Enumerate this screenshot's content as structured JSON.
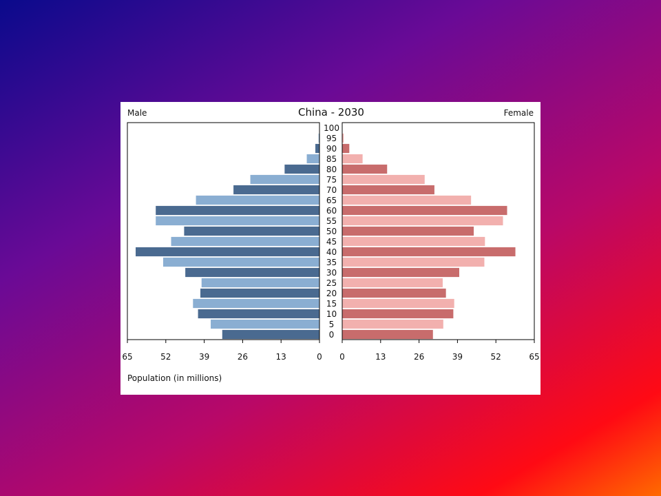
{
  "chart_data": {
    "type": "bar",
    "subtype": "population-pyramid",
    "title": "China - 2030",
    "left_label": "Male",
    "right_label": "Female",
    "xlabel": "Population (in millions)",
    "xlim": [
      0,
      65
    ],
    "xticks": [
      "65",
      "52",
      "39",
      "26",
      "13",
      "0"
    ],
    "xticks_right": [
      "0",
      "13",
      "26",
      "39",
      "52",
      "65"
    ],
    "age_groups": [
      "100",
      "95",
      "90",
      "85",
      "80",
      "75",
      "70",
      "65",
      "60",
      "55",
      "50",
      "45",
      "40",
      "35",
      "30",
      "25",
      "20",
      "15",
      "10",
      "5",
      "0"
    ],
    "series": [
      {
        "name": "Male",
        "values": [
          0.1,
          0.3,
          1.4,
          4.3,
          11.8,
          23.4,
          29.1,
          41.8,
          55.4,
          55.4,
          45.8,
          50.2,
          62.2,
          52.9,
          45.4,
          39.9,
          40.3,
          42.8,
          41.1,
          36.8,
          32.9
        ]
      },
      {
        "name": "Female",
        "values": [
          0.1,
          0.5,
          2.4,
          6.9,
          15.2,
          27.9,
          31.2,
          43.6,
          55.8,
          54.4,
          44.5,
          48.3,
          58.6,
          48.1,
          39.6,
          34.0,
          35.1,
          37.9,
          37.6,
          34.2,
          30.7
        ]
      }
    ],
    "colors": {
      "male_dark": "#4a6a90",
      "male_light": "#8aaed2",
      "female_dark": "#c86c6c",
      "female_light": "#f2b0ae",
      "axis": "#000000"
    },
    "grid": false,
    "legend": "none"
  }
}
